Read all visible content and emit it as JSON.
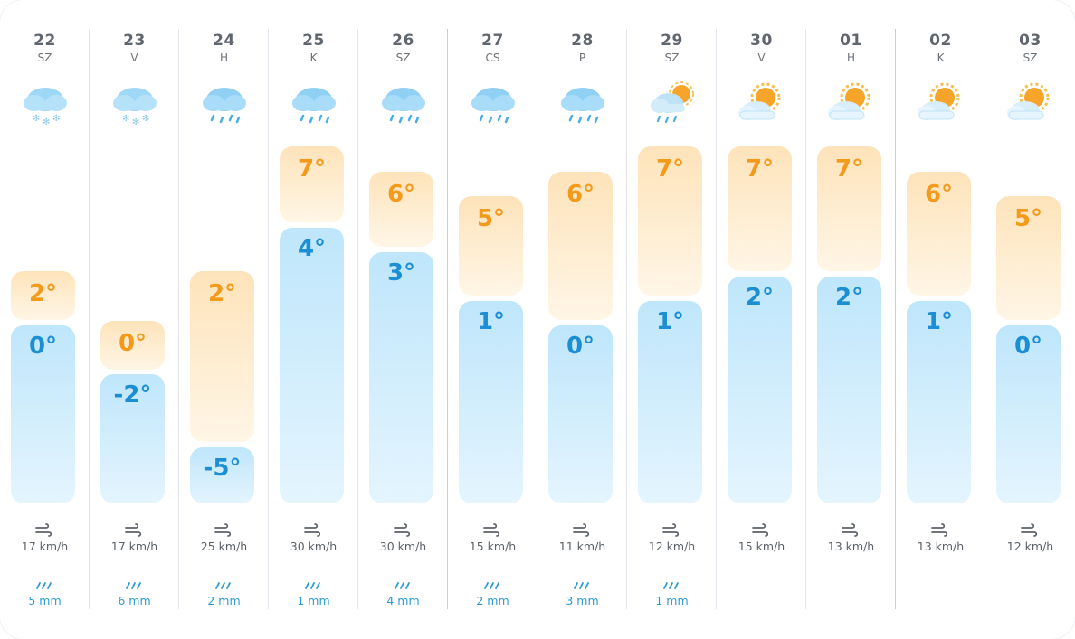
{
  "colors": {
    "high_text": "#f39a1a",
    "low_text": "#1c8ed4",
    "precip_text": "#2c9bd5",
    "divider": "#e3e7eb"
  },
  "temp_scale": {
    "min": -5,
    "max": 7
  },
  "days": [
    {
      "date": "22",
      "dow": "SZ",
      "icon": "snow-cloud-icon",
      "high": 2,
      "high_label": "2°",
      "low": 0,
      "low_label": "0°",
      "wind": "17 km/h",
      "precip": "5 mm"
    },
    {
      "date": "23",
      "dow": "V",
      "icon": "snow-cloud-icon",
      "high": 0,
      "high_label": "0°",
      "low": -2,
      "low_label": "-2°",
      "wind": "17 km/h",
      "precip": "6 mm"
    },
    {
      "date": "24",
      "dow": "H",
      "icon": "rain-cloud-icon",
      "high": 2,
      "high_label": "2°",
      "low": -5,
      "low_label": "-5°",
      "wind": "25 km/h",
      "precip": "2 mm"
    },
    {
      "date": "25",
      "dow": "K",
      "icon": "rain-cloud-icon",
      "high": 7,
      "high_label": "7°",
      "low": 4,
      "low_label": "4°",
      "wind": "30 km/h",
      "precip": "1 mm"
    },
    {
      "date": "26",
      "dow": "SZ",
      "icon": "rain-cloud-icon",
      "high": 6,
      "high_label": "6°",
      "low": 3,
      "low_label": "3°",
      "wind": "30 km/h",
      "precip": "4 mm"
    },
    {
      "date": "27",
      "dow": "CS",
      "icon": "rain-cloud-icon",
      "high": 5,
      "high_label": "5°",
      "low": 1,
      "low_label": "1°",
      "wind": "15 km/h",
      "precip": "2 mm"
    },
    {
      "date": "28",
      "dow": "P",
      "icon": "rain-cloud-icon",
      "high": 6,
      "high_label": "6°",
      "low": 0,
      "low_label": "0°",
      "wind": "11 km/h",
      "precip": "3 mm"
    },
    {
      "date": "29",
      "dow": "SZ",
      "icon": "sun-rain-cloud-icon",
      "high": 7,
      "high_label": "7°",
      "low": 1,
      "low_label": "1°",
      "wind": "12 km/h",
      "precip": "1 mm"
    },
    {
      "date": "30",
      "dow": "V",
      "icon": "partly-sunny-icon",
      "high": 7,
      "high_label": "7°",
      "low": 2,
      "low_label": "2°",
      "wind": "15 km/h",
      "precip": ""
    },
    {
      "date": "01",
      "dow": "H",
      "icon": "partly-sunny-icon",
      "high": 7,
      "high_label": "7°",
      "low": 2,
      "low_label": "2°",
      "wind": "13 km/h",
      "precip": ""
    },
    {
      "date": "02",
      "dow": "K",
      "icon": "partly-sunny-icon",
      "high": 6,
      "high_label": "6°",
      "low": 1,
      "low_label": "1°",
      "wind": "13 km/h",
      "precip": ""
    },
    {
      "date": "03",
      "dow": "SZ",
      "icon": "partly-sunny-icon",
      "high": 5,
      "high_label": "5°",
      "low": 0,
      "low_label": "0°",
      "wind": "12 km/h",
      "precip": ""
    }
  ]
}
